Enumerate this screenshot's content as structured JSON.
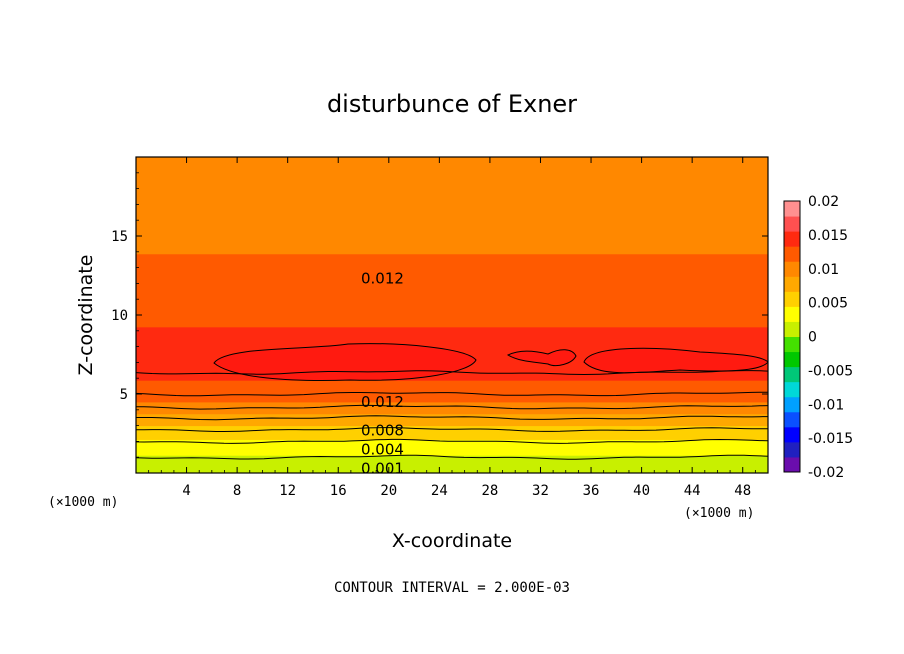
{
  "chart_data": {
    "type": "heatmap",
    "title": "disturbunce of Exner",
    "xlabel": "X-coordinate",
    "ylabel": "Z-coordinate",
    "x_unit_left": "(×1000 m)",
    "x_unit_right": "(×1000 m)",
    "xlim": [
      0,
      50
    ],
    "ylim": [
      0,
      20
    ],
    "xticks": [
      4,
      8,
      12,
      16,
      20,
      24,
      28,
      32,
      36,
      40,
      44,
      48
    ],
    "yticks": [
      5,
      10,
      15
    ],
    "field_profile": {
      "z": [
        0,
        0.5,
        1.0,
        1.5,
        2.0,
        2.5,
        3.0,
        3.5,
        4.0,
        4.5,
        5.0,
        6.0,
        6.5,
        7.0,
        7.5,
        8.0,
        8.5,
        9.5,
        11.0,
        12.2,
        13.5,
        15.0,
        16.0,
        17.7,
        18.5,
        20.0
      ],
      "value": [
        0.0005,
        0.001,
        0.002,
        0.003,
        0.004,
        0.0055,
        0.0065,
        0.008,
        0.0095,
        0.011,
        0.012,
        0.0135,
        0.0142,
        0.0148,
        0.0147,
        0.0142,
        0.0138,
        0.0132,
        0.0125,
        0.012,
        0.0113,
        0.0104,
        0.0099,
        0.0094,
        0.0093,
        0.009
      ]
    },
    "contour_interval": 0.002,
    "contour_labels": [
      {
        "text": "0.012",
        "x": 19.5,
        "z": 12.3
      },
      {
        "text": "0.012",
        "x": 19.5,
        "z": 4.5
      },
      {
        "text": "0.008",
        "x": 19.5,
        "z": 2.7
      },
      {
        "text": "0.004",
        "x": 19.5,
        "z": 1.5
      },
      {
        "text": "0.001",
        "x": 19.5,
        "z": 0.3
      }
    ],
    "colorbar": {
      "colors": [
        "#6a0dad",
        "#2020c0",
        "#0000ff",
        "#0a50ff",
        "#00a0ff",
        "#00d8d8",
        "#00c878",
        "#00c800",
        "#44e000",
        "#c8f000",
        "#ffff00",
        "#ffd000",
        "#ffa800",
        "#ff8800",
        "#ff5a00",
        "#ff2a10",
        "#ff5050",
        "#ff9090"
      ],
      "labels": [
        "0.02",
        "0.015",
        "0.01",
        "0.005",
        "0",
        "-0.005",
        "-0.01",
        "-0.015",
        "-0.02"
      ]
    },
    "footnote": "CONTOUR INTERVAL = 2.000E-03"
  }
}
